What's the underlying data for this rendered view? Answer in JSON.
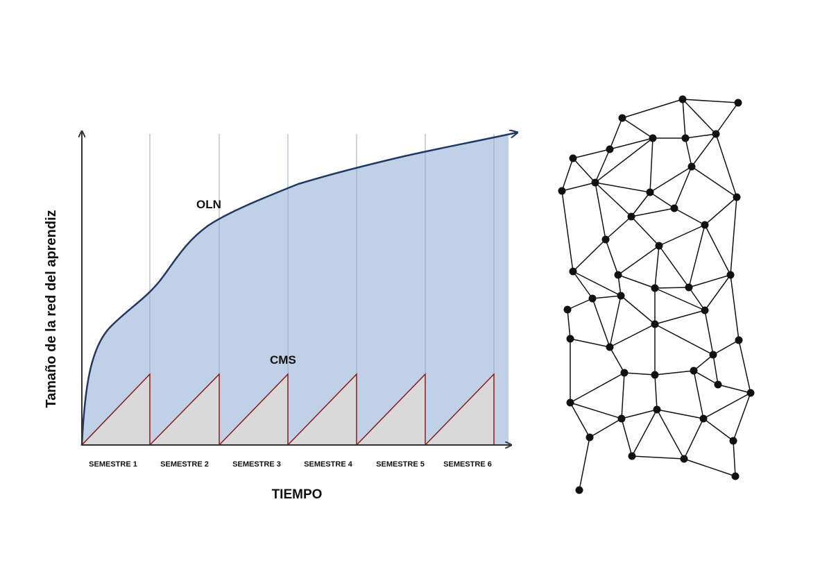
{
  "diagram": {
    "y_axis_label": "Tamaño de la red del aprendiz",
    "x_axis_label": "TIEMPO",
    "curve_labels": {
      "oln": "OLN",
      "cms": "CMS"
    },
    "semesters": [
      "SEMESTRE 1",
      "SEMESTRE 2",
      "SEMESTRE 3",
      "SEMESTRE 4",
      "SEMESTRE 5",
      "SEMESTRE 6"
    ]
  },
  "colors": {
    "area_fill": "#c0d1e7",
    "oln_line": "#1f3864",
    "cms_fill": "#d9d9d9",
    "cms_line": "#8b1a1a",
    "axis": "#333333",
    "divider": "#9aa8b8",
    "network": "#111111"
  }
}
